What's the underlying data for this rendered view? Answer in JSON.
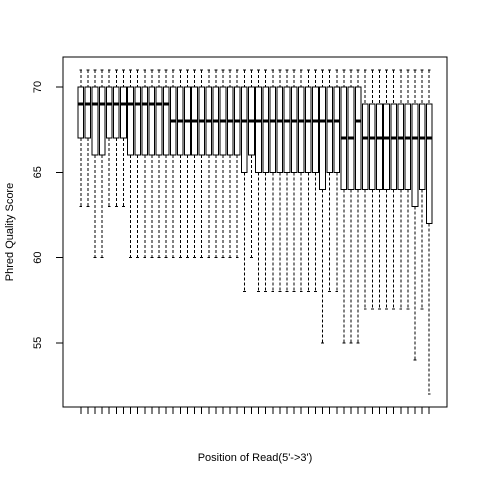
{
  "chart_data": {
    "type": "boxplot",
    "x_label": "Position of Read(5'->3')",
    "y_label": "Phred Quality Score",
    "categories": [
      null,
      null,
      null,
      null,
      null,
      null,
      null,
      null,
      null,
      null,
      null,
      null,
      null,
      null,
      null,
      null,
      null,
      null,
      null,
      null,
      null,
      null,
      null,
      null,
      null,
      null,
      null,
      null,
      null,
      null,
      null,
      null,
      null,
      null,
      null,
      null,
      null,
      null,
      null,
      null,
      null,
      null,
      null,
      null,
      null,
      null,
      null,
      null,
      null,
      null
    ],
    "min": [
      63,
      63,
      60,
      60,
      63,
      63,
      63,
      60,
      60,
      60,
      60,
      60,
      60,
      60,
      60,
      60,
      60,
      60,
      60,
      60,
      60,
      60,
      60,
      58,
      60,
      58,
      58,
      58,
      58,
      58,
      58,
      58,
      58,
      58,
      55,
      58,
      58,
      55,
      55,
      55,
      57,
      57,
      57,
      57,
      57,
      57,
      57,
      54,
      57,
      52
    ],
    "q1": [
      67,
      67,
      66,
      66,
      67,
      67,
      67,
      66,
      66,
      66,
      66,
      66,
      66,
      66,
      66,
      66,
      66,
      66,
      66,
      66,
      66,
      66,
      66,
      65,
      66,
      65,
      65,
      65,
      65,
      65,
      65,
      65,
      65,
      65,
      64,
      65,
      65,
      64,
      64,
      64,
      64,
      64,
      64,
      64,
      64,
      64,
      64,
      63,
      64,
      62
    ],
    "median": [
      69,
      69,
      69,
      69,
      69,
      69,
      69,
      69,
      69,
      69,
      69,
      69,
      69,
      68,
      68,
      68,
      68,
      68,
      68,
      68,
      68,
      68,
      68,
      68,
      68,
      68,
      68,
      68,
      68,
      68,
      68,
      68,
      68,
      68,
      68,
      68,
      68,
      67,
      67,
      68,
      67,
      67,
      67,
      67,
      67,
      67,
      67,
      67,
      67,
      67
    ],
    "q3": [
      70,
      70,
      70,
      70,
      70,
      70,
      70,
      70,
      70,
      70,
      70,
      70,
      70,
      70,
      70,
      70,
      70,
      70,
      70,
      70,
      70,
      70,
      70,
      70,
      70,
      70,
      70,
      70,
      70,
      70,
      70,
      70,
      70,
      70,
      70,
      70,
      70,
      70,
      70,
      70,
      69,
      69,
      69,
      69,
      69,
      69,
      69,
      69,
      69,
      69
    ],
    "max": [
      71,
      71,
      71,
      71,
      71,
      71,
      71,
      71,
      71,
      71,
      71,
      71,
      71,
      71,
      71,
      71,
      71,
      71,
      71,
      71,
      71,
      71,
      71,
      71,
      71,
      71,
      71,
      71,
      71,
      71,
      71,
      71,
      71,
      71,
      71,
      71,
      71,
      71,
      71,
      71,
      71,
      71,
      71,
      71,
      71,
      71,
      71,
      71,
      71,
      71
    ],
    "ylim": [
      51.24,
      71.76
    ],
    "yticks": [
      55,
      60,
      65,
      70
    ],
    "color": "#ffffff"
  }
}
